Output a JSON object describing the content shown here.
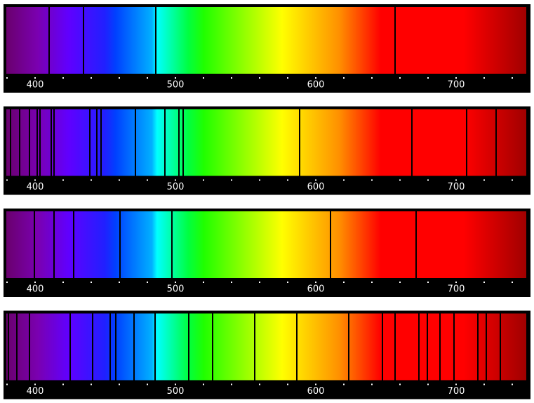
{
  "chart_data": [
    {
      "type": "spectrum",
      "lines": [
        410,
        434.5,
        486,
        656.5
      ],
      "xlim": [
        379.5,
        750
      ],
      "xticks": [
        400,
        500,
        600,
        700
      ],
      "minor_xticks": [
        380,
        420,
        440,
        460,
        480,
        520,
        540,
        560,
        580,
        620,
        640,
        660,
        680,
        720,
        740
      ]
    },
    {
      "type": "spectrum",
      "lines": [
        382.5,
        389,
        396,
        401.5,
        403.5,
        411.5,
        413.5,
        439,
        444,
        447,
        471.5,
        492.5,
        502.5,
        505.5,
        588.5,
        668.5,
        707.5,
        728.5
      ],
      "xlim": [
        379.5,
        750
      ],
      "xticks": [
        400,
        500,
        600,
        700
      ],
      "minor_xticks": [
        380,
        420,
        440,
        460,
        480,
        520,
        540,
        560,
        580,
        620,
        640,
        660,
        680,
        720,
        740
      ]
    },
    {
      "type": "spectrum",
      "lines": [
        399.5,
        413.5,
        427.5,
        460.5,
        497.5,
        610.5,
        671.5
      ],
      "xlim": [
        379.5,
        750
      ],
      "xticks": [
        400,
        500,
        600,
        700
      ],
      "minor_xticks": [
        380,
        420,
        440,
        460,
        480,
        520,
        540,
        560,
        580,
        620,
        640,
        660,
        680,
        720,
        740
      ]
    },
    {
      "type": "spectrum",
      "lines": [
        381,
        387,
        396,
        425,
        441,
        453.5,
        457.5,
        470.5,
        485.5,
        509.5,
        526.5,
        556.5,
        586.5,
        623.5,
        647.5,
        656.5,
        673.5,
        679.5,
        688.5,
        698.5,
        715.5,
        721.5,
        731.5
      ],
      "xlim": [
        379.5,
        750
      ],
      "xticks": [
        400,
        500,
        600,
        700
      ],
      "minor_xticks": [
        380,
        420,
        440,
        460,
        480,
        520,
        540,
        560,
        580,
        620,
        640,
        660,
        680,
        720,
        740
      ]
    }
  ]
}
